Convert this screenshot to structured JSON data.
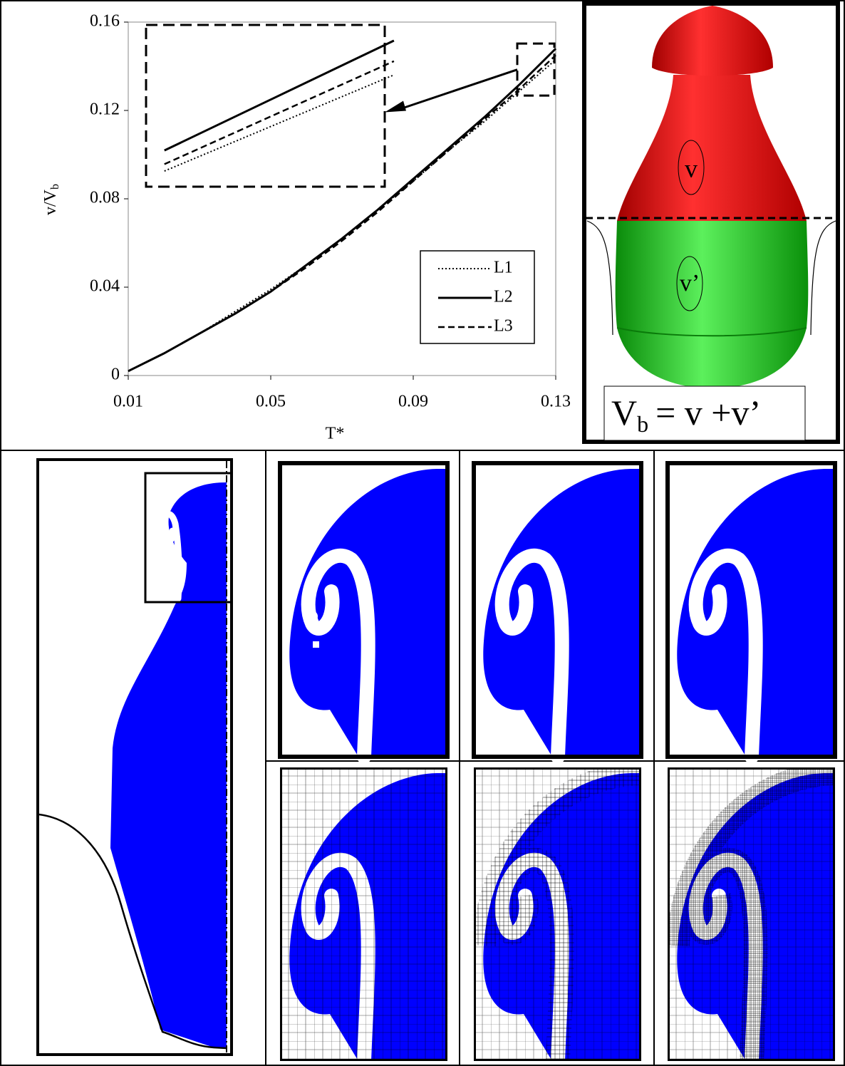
{
  "chart_data": {
    "type": "line",
    "xlabel": "T*",
    "ylabel": "v/V",
    "ylabel_subscript": "b",
    "x": [
      0.01,
      0.02,
      0.03,
      0.04,
      0.05,
      0.06,
      0.07,
      0.08,
      0.09,
      0.1,
      0.11,
      0.12,
      0.13
    ],
    "series": [
      {
        "name": "L1",
        "color": "#000000",
        "dash": "dotted",
        "values": [
          0.002,
          0.01,
          0.019,
          0.029,
          0.039,
          0.05,
          0.062,
          0.075,
          0.088,
          0.102,
          0.115,
          0.129,
          0.143
        ]
      },
      {
        "name": "L2",
        "color": "#000000",
        "dash": "solid",
        "values": [
          0.002,
          0.01,
          0.019,
          0.028,
          0.038,
          0.05,
          0.062,
          0.075,
          0.089,
          0.103,
          0.117,
          0.132,
          0.148
        ]
      },
      {
        "name": "L3",
        "color": "#000000",
        "dash": "dashed",
        "values": [
          0.002,
          0.01,
          0.019,
          0.028,
          0.038,
          0.049,
          0.061,
          0.074,
          0.088,
          0.102,
          0.116,
          0.13,
          0.145
        ]
      }
    ],
    "xlim": [
      0.01,
      0.13
    ],
    "xticks": [
      0.01,
      0.05,
      0.09,
      0.13
    ],
    "ylim": [
      0,
      0.16
    ],
    "yticks": [
      0,
      0.04,
      0.08,
      0.12,
      0.16
    ],
    "grid": false,
    "legend": "lower right"
  },
  "volume_panel": {
    "upper_label": "v",
    "lower_label": "v’",
    "equation_symbol": "V",
    "equation_subscript": "b",
    "equation_rest": "= v +v’"
  }
}
